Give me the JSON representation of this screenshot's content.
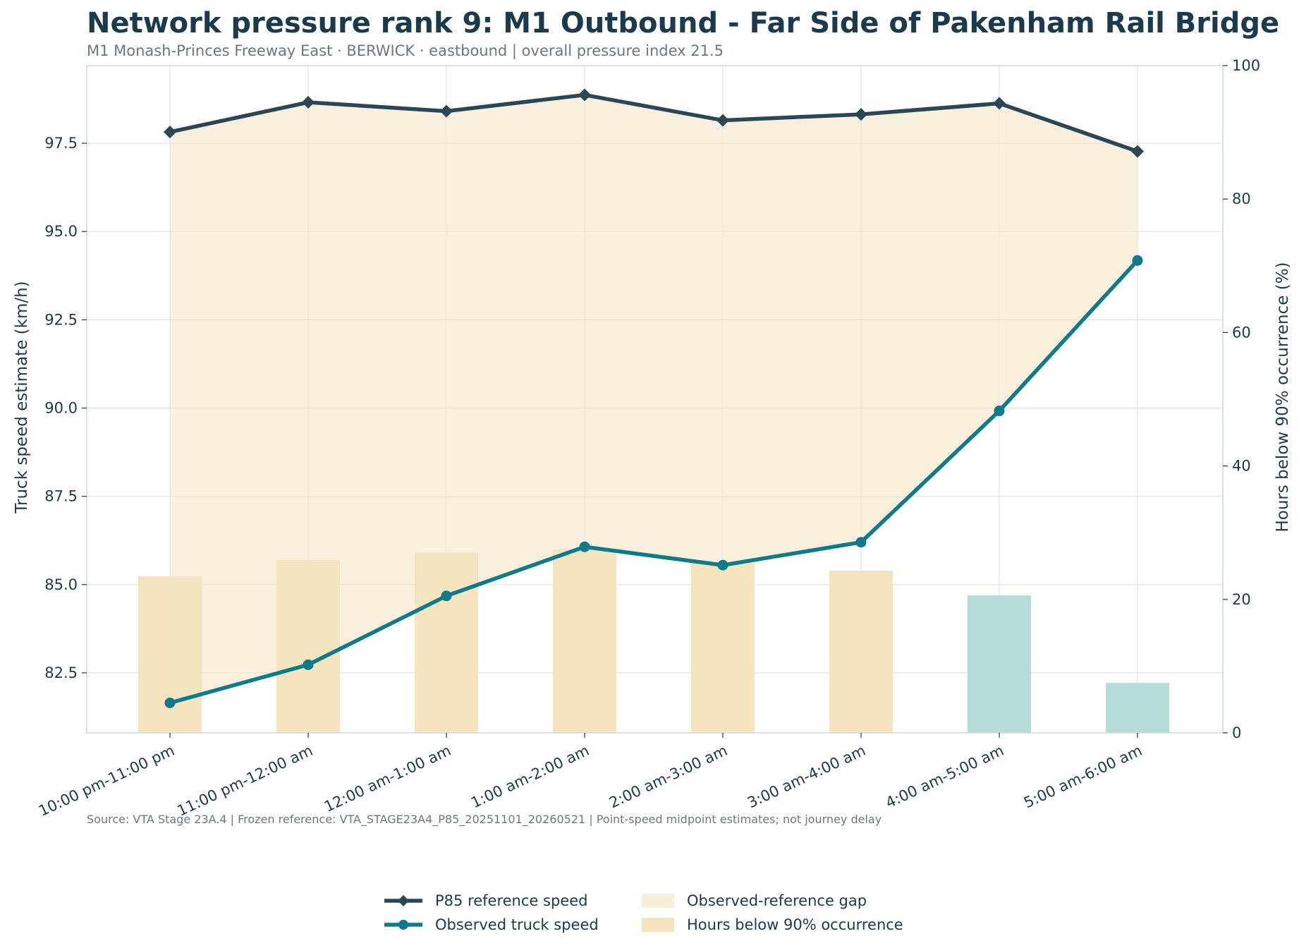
{
  "chart_data": {
    "type": "line",
    "title": "Network pressure rank 9: M1 Outbound - Far Side of Pakenham Rail Bridge",
    "subtitle": "M1 Monash-Princes Freeway East · BERWICK · eastbound | overall pressure index 21.5",
    "categories": [
      "10:00 pm-11:00 pm",
      "11:00 pm-12:00 am",
      "12:00 am-1:00 am",
      "1:00 am-2:00 am",
      "2:00 am-3:00 am",
      "3:00 am-4:00 am",
      "4:00 am-5:00 am",
      "5:00 am-6:00 am"
    ],
    "series": [
      {
        "name": "P85 reference speed",
        "axis": "left",
        "type": "line",
        "marker": "diamond",
        "color": "#2b4654",
        "values": [
          97.82,
          98.66,
          98.41,
          98.87,
          98.15,
          98.32,
          98.63,
          97.27
        ]
      },
      {
        "name": "Observed truck speed",
        "axis": "left",
        "type": "line",
        "marker": "circle",
        "color": "#0e7a8a",
        "values": [
          81.65,
          82.73,
          84.68,
          86.07,
          85.55,
          86.2,
          89.92,
          94.18
        ]
      },
      {
        "name": "Observed-reference gap",
        "type": "area",
        "color": "#f7efdb"
      },
      {
        "name": "Hours below 90% occurrence",
        "axis": "right",
        "type": "bar",
        "color": "#f5e4bd",
        "values": [
          23.5,
          25.9,
          27.0,
          27.5,
          25.5,
          24.3,
          20.6,
          7.5
        ],
        "bar_colors": [
          "#f5e4bd",
          "#f5e4bd",
          "#f5e4bd",
          "#f5e4bd",
          "#f5e4bd",
          "#f5e4bd",
          "#b5dcd6",
          "#b5dcd6"
        ]
      }
    ],
    "y_left": {
      "label": "Truck speed estimate (km/h)",
      "range": [
        80.8,
        99.7
      ],
      "ticks": [
        "82.5",
        "85.0",
        "87.5",
        "90.0",
        "92.5",
        "95.0",
        "97.5"
      ]
    },
    "y_right": {
      "label": "Hours below 90% occurrence (%)",
      "range": [
        0,
        100
      ],
      "ticks": [
        "0",
        "20",
        "40",
        "60",
        "80",
        "100"
      ]
    },
    "grid": true,
    "legend_position": "bottom-center",
    "source": "Source: VTA Stage 23A.4 | Frozen reference: VTA_STAGE23A4_P85_20251101_20260521 | Point-speed midpoint estimates; not journey delay"
  }
}
